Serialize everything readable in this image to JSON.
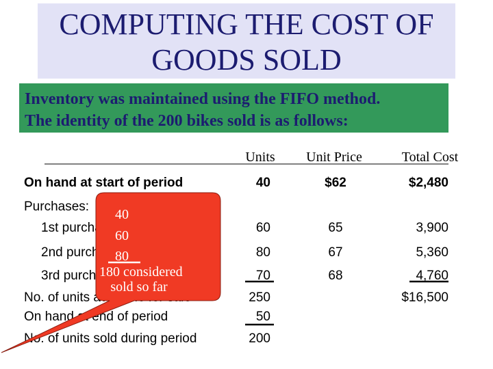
{
  "title": [
    "COMPUTING THE COST OF",
    "GOODS SOLD"
  ],
  "intro": [
    "Inventory was maintained using the FIFO method.",
    "The identity of the 200 bikes sold is as follows:"
  ],
  "table": {
    "headers": [
      "Units",
      "Unit Price",
      "Total Cost"
    ],
    "rows": [
      [
        "On hand at start of period",
        40,
        "$62",
        "$2,480"
      ],
      [
        "Purchases:",
        null,
        null,
        null
      ],
      [
        "1st purchase",
        60,
        65,
        "3,900"
      ],
      [
        "2nd purchase",
        80,
        67,
        "5,360"
      ],
      [
        "3rd purchase",
        70,
        68,
        "4,760"
      ],
      [
        "No. of units available for sale",
        250,
        null,
        "$16,500"
      ],
      [
        "On hand at end of period",
        50,
        null,
        null
      ],
      [
        "No. of units sold during period",
        200,
        null,
        null
      ]
    ]
  },
  "callout": [
    "40",
    "60",
    "80",
    "180  considered",
    "sold so far"
  ]
}
